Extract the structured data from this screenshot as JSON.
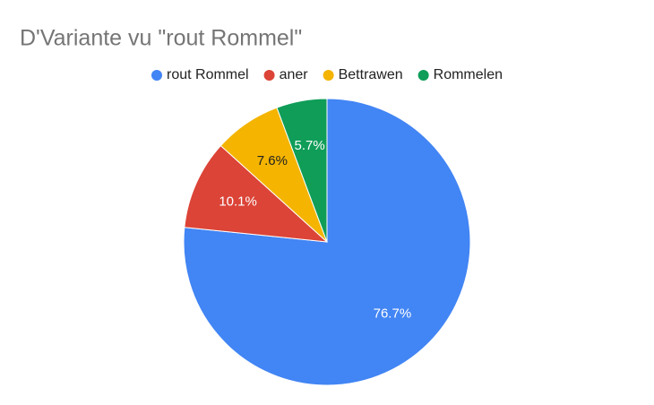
{
  "chart_data": {
    "type": "pie",
    "title": "D'Variante vu \"rout Rommel\"",
    "categories": [
      "rout Rommel",
      "aner",
      "Bettrawen",
      "Rommelen"
    ],
    "values": [
      76.7,
      10.1,
      7.6,
      5.7
    ],
    "value_labels": [
      "76.7%",
      "10.1%",
      "7.6%",
      "5.7%"
    ],
    "colors": [
      "#4285f4",
      "#db4437",
      "#f4b400",
      "#0f9d58"
    ],
    "legend": "top"
  }
}
